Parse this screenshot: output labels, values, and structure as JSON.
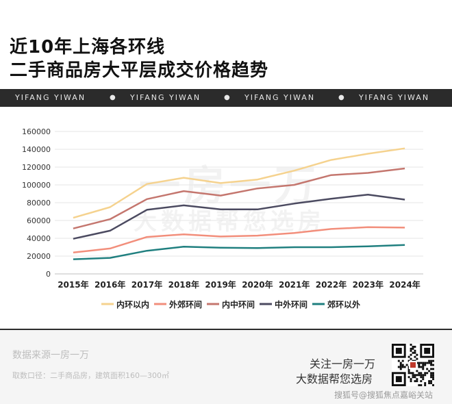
{
  "title": {
    "line1": "近10年上海各环线",
    "line2": "二手商品房大平层成交价格趋势"
  },
  "band": {
    "items": [
      "YIFANG YIWAN",
      "YIFANG YIWAN",
      "YIFANG YIWAN",
      "YIFANG YIWAN"
    ]
  },
  "watermark": {
    "line1": "一房一万",
    "line2": "大数据帮您选房"
  },
  "chart_data": {
    "type": "line",
    "title": "",
    "xlabel": "",
    "ylabel": "",
    "x": [
      "2015年",
      "2016年",
      "2017年",
      "2018年",
      "2019年",
      "2020年",
      "2021年",
      "2022年",
      "2023年",
      "2024年"
    ],
    "ylim": [
      0,
      160000
    ],
    "yticks": [
      0,
      20000,
      40000,
      60000,
      80000,
      100000,
      120000,
      140000,
      160000
    ],
    "grid": true,
    "legend_position": "bottom",
    "series": [
      {
        "name": "内环以内",
        "color": "#f5d28e",
        "values": [
          63000,
          75000,
          101000,
          108000,
          102000,
          106000,
          116000,
          128000,
          135000,
          141000
        ]
      },
      {
        "name": "外郊环间",
        "color": "#f28e7b",
        "values": [
          24000,
          28500,
          41500,
          44500,
          42000,
          43000,
          46000,
          50500,
          52500,
          52000
        ]
      },
      {
        "name": "内中环间",
        "color": "#c4766e",
        "values": [
          51000,
          61500,
          84000,
          93000,
          88000,
          96000,
          100000,
          111000,
          113500,
          118500
        ]
      },
      {
        "name": "中外环间",
        "color": "#4b4a60",
        "values": [
          39500,
          48500,
          72000,
          77000,
          72500,
          72500,
          79000,
          84500,
          89000,
          83500
        ]
      },
      {
        "name": "郊环以外",
        "color": "#1f7f7f",
        "values": [
          16500,
          18000,
          26000,
          30500,
          29500,
          29000,
          30000,
          30000,
          31000,
          32500
        ]
      }
    ]
  },
  "footer": {
    "source": "数据来源一房一万",
    "caliber": "取数口径：二手商品房，建筑面积160—300㎡",
    "follow_line1": "关注一房一万",
    "follow_line2": "大数据帮您选房",
    "credit": "搜狐号@搜狐焦点嘉峪关站"
  },
  "icons": {
    "qr": "qr-code-icon"
  }
}
